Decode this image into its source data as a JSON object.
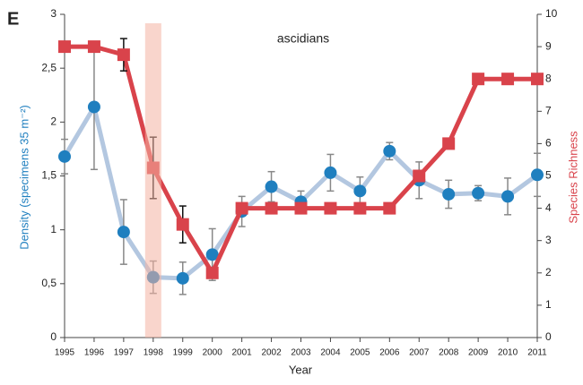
{
  "chart_data": {
    "type": "line",
    "panel_label": "E",
    "title": "ascidians",
    "x_label": "Year",
    "y_label": "Density (specimens 35 m⁻²)",
    "y2_label": "Species Richness",
    "categories": [
      "1995",
      "1996",
      "1997",
      "1998",
      "1999",
      "2000",
      "2001",
      "2002",
      "2003",
      "2004",
      "2005",
      "2006",
      "2007",
      "2008",
      "2009",
      "2010",
      "2011"
    ],
    "ylim": [
      0,
      3
    ],
    "yticks": [
      0,
      {
        "value": 0.5,
        "label": "0,5"
      },
      1,
      {
        "value": 1.5,
        "label": "1,5"
      },
      2,
      {
        "value": 2.5,
        "label": "2,5"
      },
      3
    ],
    "y2lim": [
      0,
      10
    ],
    "y2ticks": [
      0,
      1,
      2,
      3,
      4,
      5,
      6,
      7,
      8,
      9,
      10
    ],
    "highlight": {
      "category": "1998",
      "color": "#f4b3a3"
    },
    "series": [
      {
        "name": "Density",
        "color": "#1f7fbf",
        "line_color": "#b3c7e0",
        "error_color": "#888888",
        "values": [
          1.68,
          2.14,
          0.98,
          0.56,
          0.55,
          0.77,
          1.17,
          1.4,
          1.26,
          1.53,
          1.36,
          1.73,
          1.46,
          1.33,
          1.34,
          1.31,
          1.51
        ],
        "errors": [
          0.16,
          0.58,
          0.3,
          0.15,
          0.15,
          0.24,
          0.14,
          0.14,
          0.1,
          0.17,
          0.13,
          0.08,
          0.17,
          0.13,
          0.07,
          0.17,
          0.2
        ]
      },
      {
        "name": "Species Richness",
        "color": "#d9434b",
        "line_color": "#d9434b",
        "error_color": "#111111",
        "axis": "y2",
        "values": [
          9,
          9,
          8.75,
          5.25,
          3.5,
          2,
          4,
          4,
          4,
          4,
          4,
          4,
          5,
          6,
          8,
          8,
          8
        ],
        "errors": [
          null,
          null,
          0.5,
          0.95,
          0.57,
          null,
          null,
          null,
          null,
          null,
          null,
          null,
          null,
          null,
          null,
          null,
          null
        ]
      }
    ]
  }
}
